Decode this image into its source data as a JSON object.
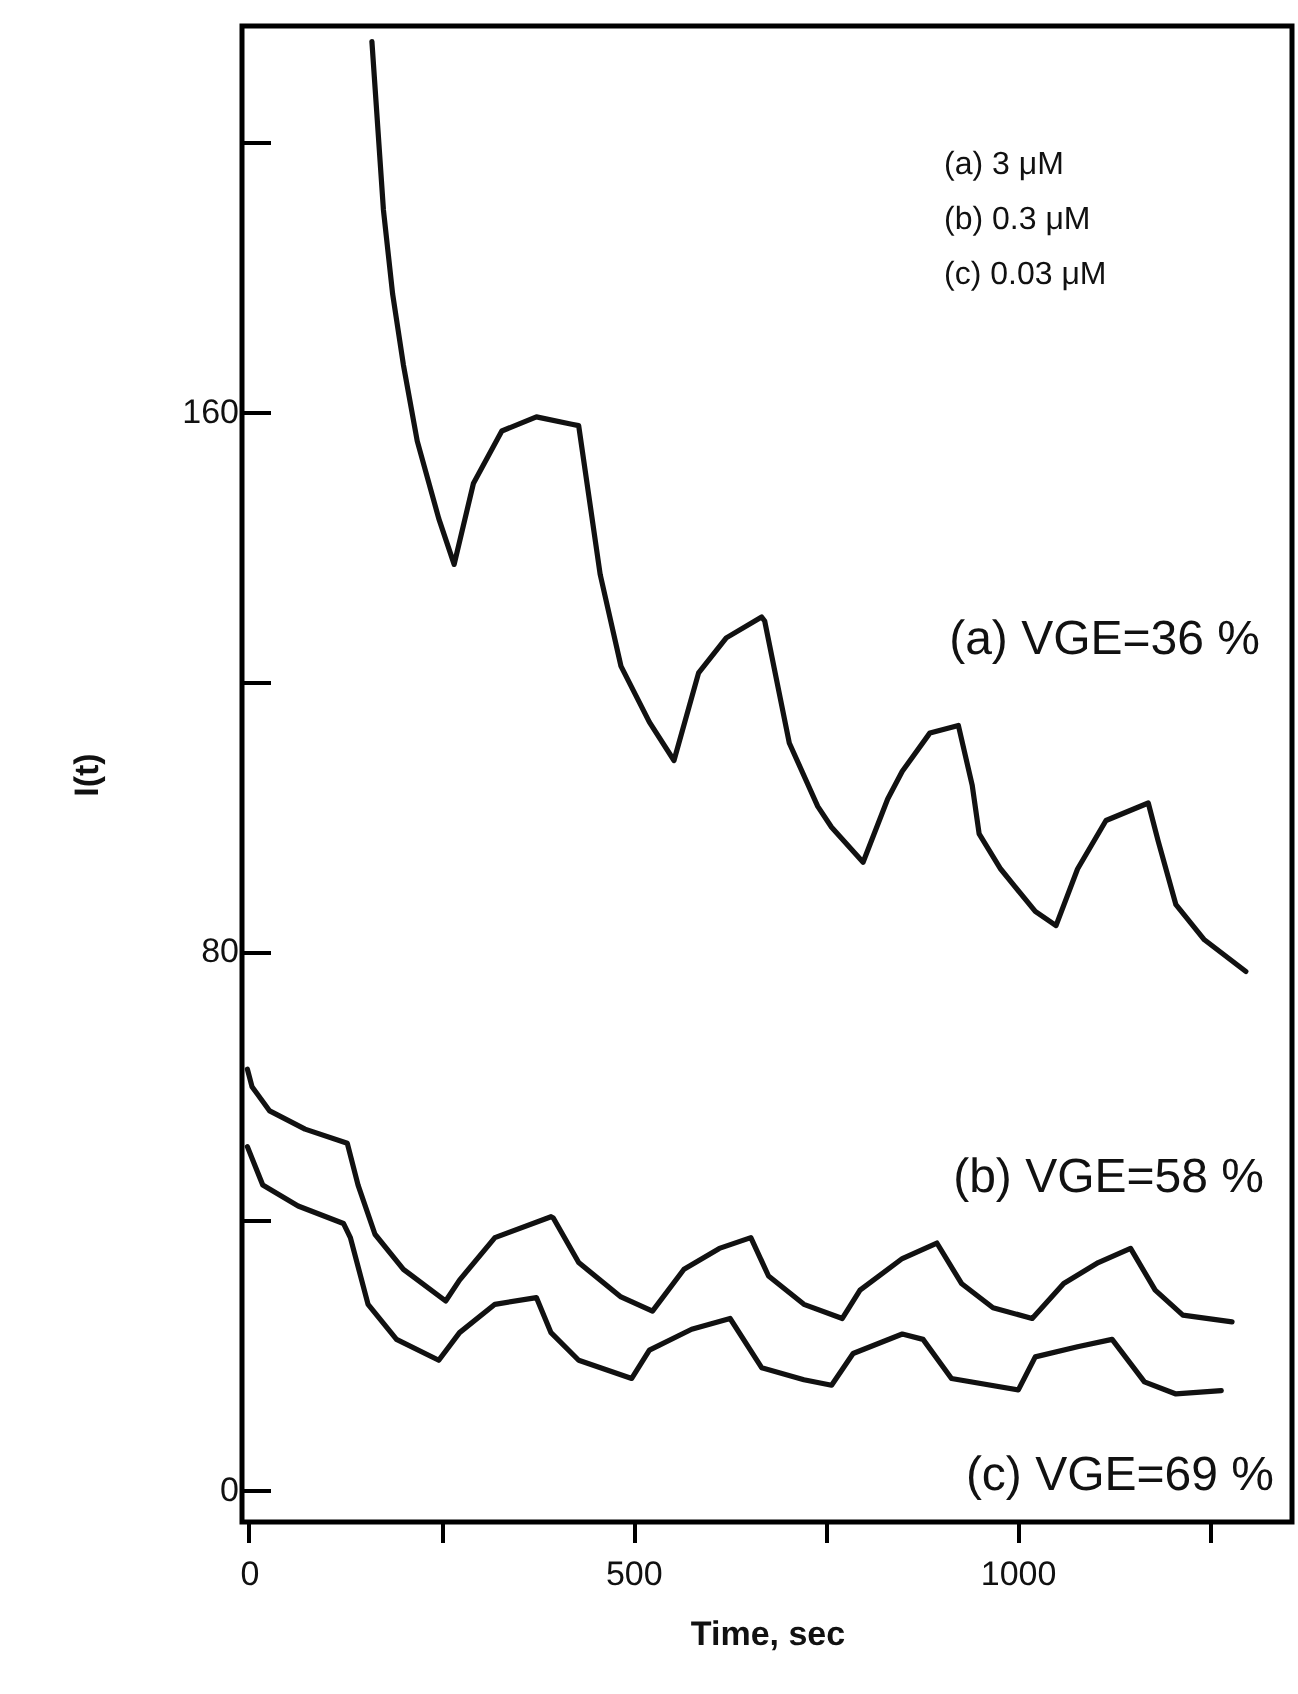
{
  "chart_data": {
    "type": "line",
    "xlabel": "Time, sec",
    "ylabel": "I(t)",
    "xlim": [
      -9,
      1357
    ],
    "ylim": [
      -4.7,
      217.3
    ],
    "xticks": [
      0,
      {
        "value": 250,
        "label": null
      },
      500,
      {
        "value": 750,
        "label": null
      },
      1000,
      {
        "value": 1250,
        "label": null
      }
    ],
    "yticks": [
      0,
      {
        "value": 40,
        "label": null
      },
      80,
      {
        "value": 120,
        "label": null
      },
      160,
      {
        "value": 200,
        "label": null
      }
    ],
    "annotations": [
      "(a)  3 μM",
      "(b)  0.3 μM",
      "(c)  0.03 μM"
    ],
    "series": [
      {
        "name": "(a) VGE=36 %",
        "color": "#111111",
        "x": [
          160,
          175,
          187,
          201,
          219,
          247,
          267,
          292,
          329,
          374,
          420,
          429,
          457,
          484,
          521,
          553,
          585,
          621,
          667,
          671,
          703,
          740,
          758,
          799,
          831,
          850,
          886,
          923,
          941,
          950,
          978,
          1023,
          1050,
          1078,
          1115,
          1170,
          1183,
          1206,
          1243,
          1297
        ],
        "values": [
          215,
          190,
          177.5,
          167,
          155.7,
          144.2,
          137.4,
          149.4,
          157.2,
          159.3,
          158.2,
          158,
          135.9,
          122.3,
          114,
          108.3,
          121.3,
          126.5,
          129.6,
          129,
          110.9,
          101.5,
          98.4,
          93.2,
          102.6,
          106.7,
          112.4,
          113.5,
          104.6,
          97.4,
          92.2,
          85.9,
          83.8,
          92.2,
          99.4,
          102,
          96.3,
          86.9,
          81.7,
          77
        ]
      },
      {
        "name": "(b) VGE=58 %",
        "color": "#111111",
        "x": [
          -2,
          4,
          27,
          73,
          128,
          142,
          164,
          201,
          256,
          274,
          320,
          393,
          396,
          429,
          484,
          525,
          566,
          612,
          653,
          676,
          722,
          772,
          795,
          850,
          895,
          927,
          968,
          1019,
          1060,
          1105,
          1147,
          1179,
          1215,
          1279
        ],
        "values": [
          62.5,
          59.9,
          56.3,
          53.6,
          51.5,
          45.3,
          38,
          32.8,
          28.1,
          31.2,
          37.5,
          40.6,
          40.4,
          33.8,
          28.7,
          26.6,
          32.8,
          35.9,
          37.5,
          31.8,
          27.6,
          25.5,
          29.7,
          34.4,
          36.7,
          30.7,
          27.1,
          25.5,
          30.7,
          33.8,
          35.9,
          29.7,
          26,
          25
        ]
      },
      {
        "name": "(c) VGE=69 %",
        "color": "#111111",
        "x": [
          -2,
          18,
          64,
          123,
          132,
          155,
          192,
          247,
          274,
          320,
          374,
          393,
          429,
          498,
          521,
          576,
          626,
          667,
          722,
          758,
          786,
          850,
          877,
          914,
          1001,
          1023,
          1078,
          1123,
          1165,
          1206,
          1265
        ],
        "values": [
          51,
          45.3,
          42.2,
          39.6,
          37.5,
          27.6,
          22.4,
          19.3,
          23.4,
          27.6,
          28.6,
          23.4,
          19.3,
          16.6,
          20.8,
          23.9,
          25.5,
          18.2,
          16.4,
          15.6,
          20.3,
          23.2,
          22.4,
          16.6,
          14.9,
          19.8,
          21.3,
          22.4,
          16.1,
          14.3,
          14.8
        ]
      }
    ]
  }
}
